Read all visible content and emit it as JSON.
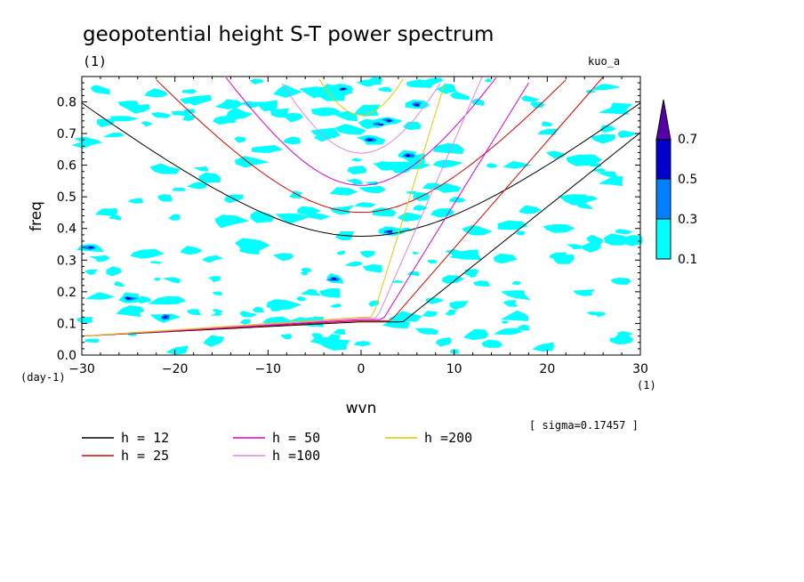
{
  "chart_data": {
    "type": "contour",
    "title": "geopotential height S-T power spectrum",
    "subtitle_left": "(1)",
    "subtitle_right": "kuo_a",
    "xlabel": "wvn",
    "ylabel": "freq",
    "x_unit": "(1)",
    "y_unit": "(day-1)",
    "xlim": [
      -30,
      30
    ],
    "ylim": [
      0,
      0.88
    ],
    "x_ticks": [
      "-30",
      "-20",
      "-10",
      "0",
      "10",
      "20",
      "30"
    ],
    "y_ticks": [
      "0.0",
      "0.1",
      "0.2",
      "0.3",
      "0.4",
      "0.5",
      "0.6",
      "0.7",
      "0.8"
    ],
    "sigma_text": "[ sigma=0.17457 ]",
    "colorbar": {
      "levels": [
        "0.1",
        "0.3",
        "0.5",
        "0.7"
      ],
      "colors": [
        "#00ffff",
        "#0080ff",
        "#0000cc",
        "#5500aa"
      ]
    },
    "series": [
      {
        "name": "h = 12",
        "color": "#000000"
      },
      {
        "name": "h = 25",
        "color": "#dd0000"
      },
      {
        "name": "h = 50",
        "color": "#dd00dd"
      },
      {
        "name": "h =100",
        "color": "#dd88dd"
      },
      {
        "name": "h =200",
        "color": "#e6c800"
      }
    ],
    "grid": false,
    "legend_position": "bottom-left"
  }
}
